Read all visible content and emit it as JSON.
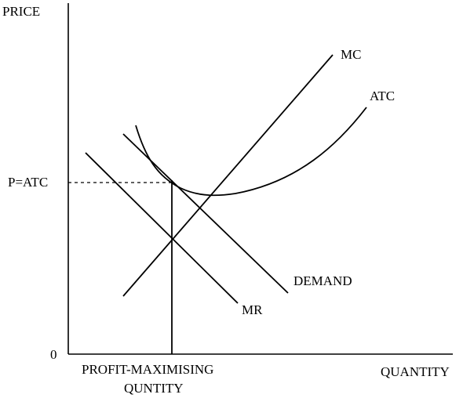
{
  "diagram": {
    "axes": {
      "y_label": "PRICE",
      "x_label": "QUANTITY",
      "origin_label": "0"
    },
    "price_label": "P=ATC",
    "quantity_label_line1": "PROFIT-MAXIMISING",
    "quantity_label_line2": "QUNTITY",
    "curves": {
      "mc": "MC",
      "atc": "ATC",
      "demand": "DEMAND",
      "mr": "MR"
    },
    "colors": {
      "ink": "#000000",
      "background": "#ffffff"
    }
  }
}
